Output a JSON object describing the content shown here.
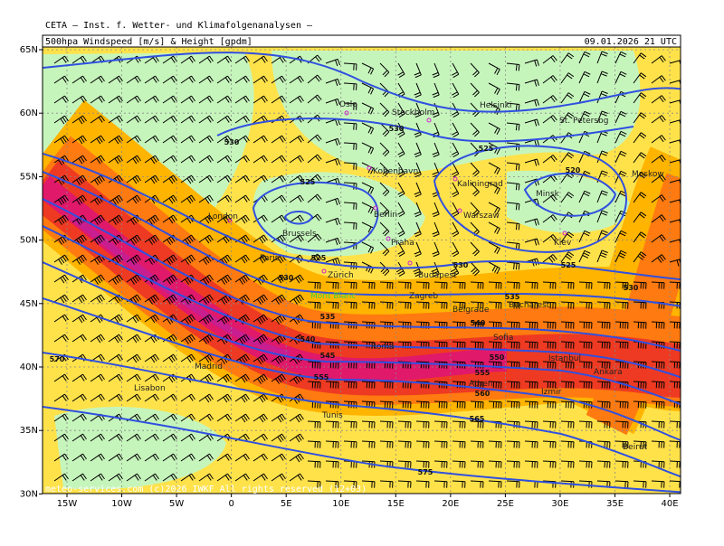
{
  "header": {
    "institute": "CETA – Inst. f. Wetter- und Klimafolgenanalysen –",
    "title": "500hpa Windspeed [m/s] & Height [gpdm]",
    "datetime": "09.01.2026 21 UTC"
  },
  "footer": "meteo-services.com  (c)2026 IWKF  All rights reserved (12+03)",
  "lat_labels": [
    "65N",
    "60N",
    "55N",
    "50N",
    "45N",
    "40N",
    "35N",
    "30N"
  ],
  "lon_labels": [
    "15W",
    "10W",
    "5W",
    "0",
    "5E",
    "10E",
    "15E",
    "20E",
    "25E",
    "30E",
    "35E",
    "40E"
  ],
  "cities": [
    "Oslo",
    "Stockholm",
    "Helsinki",
    "St. Petersbg",
    "Kobenhavn",
    "Kaliningrad",
    "Moskow",
    "Minsk",
    "London",
    "Berlin",
    "Warszaw",
    "Brussels",
    "Praha",
    "Kiev",
    "Paris",
    "Budapest",
    "Zürich",
    "Mont Blanc",
    "Zagreb",
    "Belgrade",
    "Bucharest",
    "Sofia",
    "Roma",
    "Madrid",
    "Istanbul",
    "Ankara",
    "Lisabon",
    "Athen",
    "Izmir",
    "Tunis",
    "Beirut"
  ],
  "contour_labels": [
    530,
    530,
    525,
    520,
    525,
    525,
    530,
    525,
    530,
    535,
    530,
    535,
    540,
    540,
    545,
    550,
    555,
    555,
    560,
    565,
    575,
    570
  ]
}
